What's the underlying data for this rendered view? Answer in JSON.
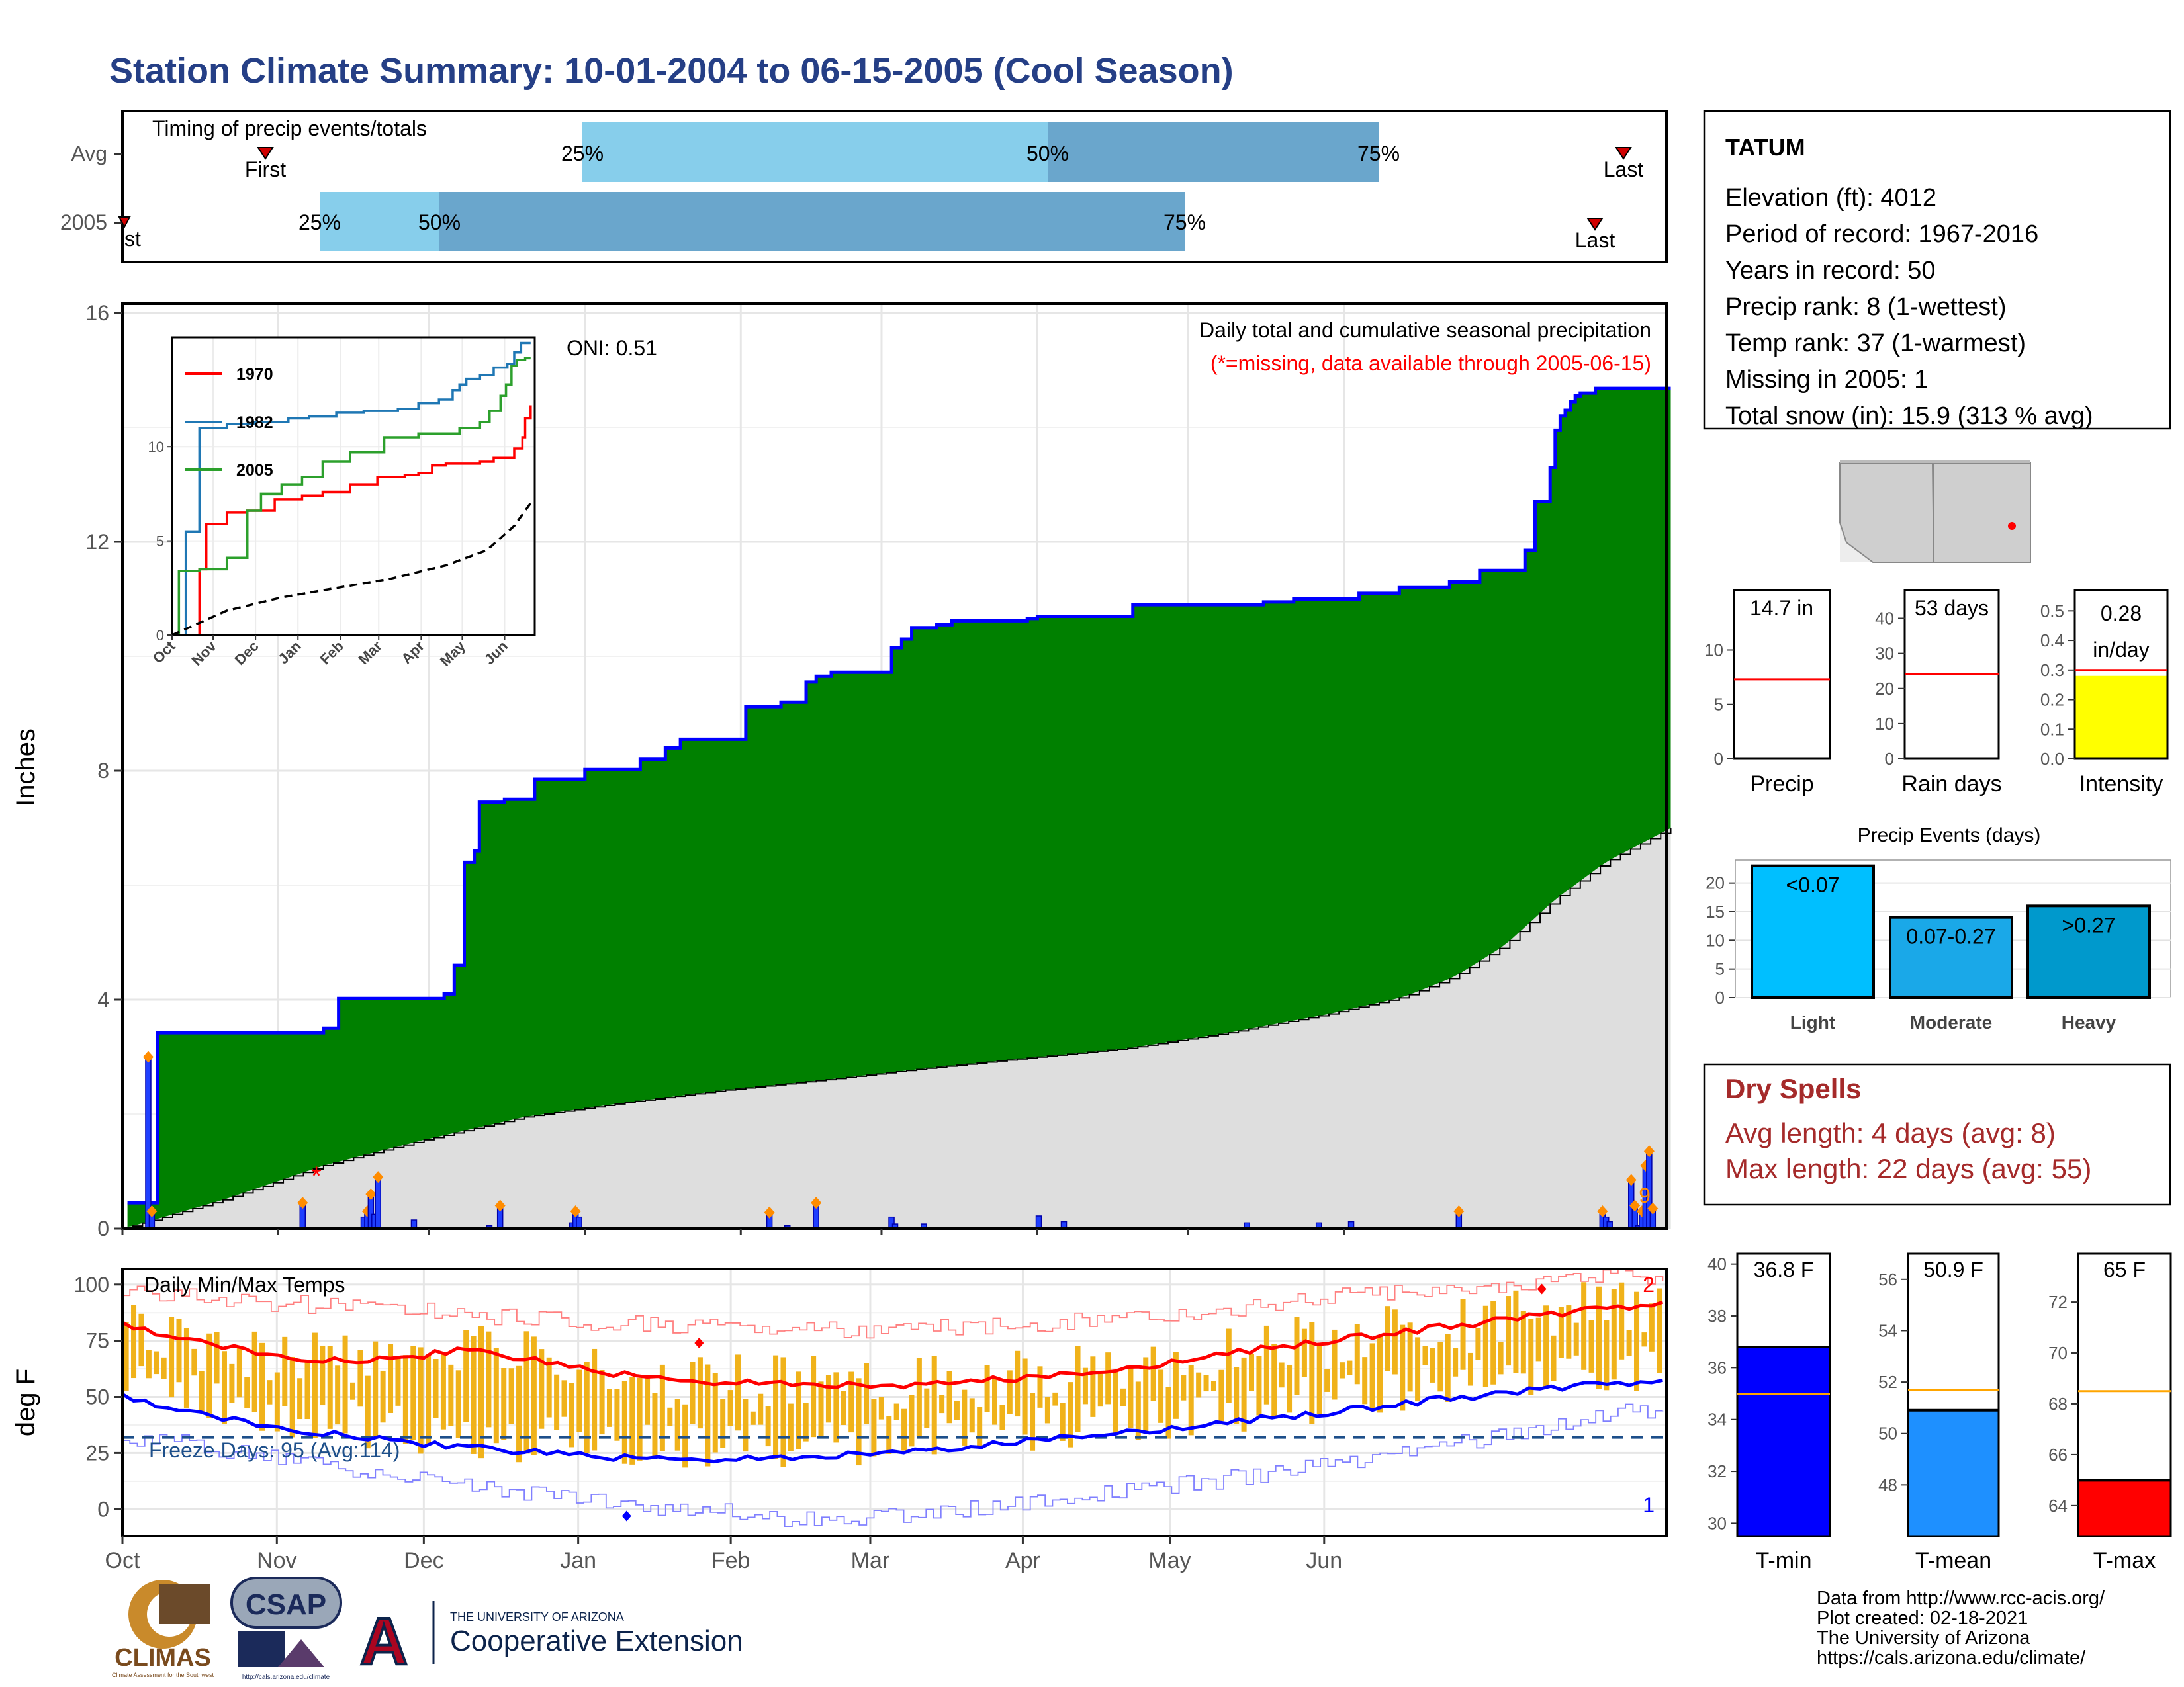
{
  "title": "Station Climate Summary: 10-01-2004 to 06-15-2005 (Cool Season)",
  "colors": {
    "title": "#253f86",
    "bar_light": "#87ceeb",
    "bar_dark": "#6aa6cc",
    "precip_fill": "#008000",
    "avg_fill": "#dedede",
    "precip_line": "#0000ff",
    "temp_bar": "#f0b21a",
    "tmax_line": "#ff0000",
    "tmin_line": "#0000ff",
    "freeze_line": "#1d4f8a",
    "dry_spells": "#a52a2a",
    "onset": "#ff8c00",
    "missing": "#ff0000",
    "intensity_fill": "#ffff00",
    "light_fill": "#00bfff",
    "moderate_fill": "#1aa8e8",
    "heavy_fill": "#0099cc",
    "tmin_fill": "#0000ff",
    "tmean_fill": "#1e90ff",
    "tmax_fill": "#ff0000",
    "avg_marker": "#ffa500"
  },
  "timing": {
    "label": "Timing of precip events/totals",
    "rows": [
      "Avg",
      "2005"
    ],
    "avg": {
      "first": "First",
      "last": "Last",
      "p25": "25%",
      "p50": "50%",
      "p75": "75%"
    },
    "y2005": {
      "first": "st",
      "last": "Last",
      "p25": "25%",
      "p50": "50%",
      "p75": "75%"
    }
  },
  "chart_data": [
    {
      "type": "area",
      "panel": "precipitation",
      "title": "Daily total and cumulative seasonal precipitation",
      "subtitle": "(*=missing, data available through 2005-06-15)",
      "ylabel": "Inches",
      "ylim": [
        0,
        16
      ],
      "yticks": [
        "0",
        "4",
        "8",
        "12",
        "16"
      ],
      "oni": "ONI: 0.51",
      "corner_count": "9",
      "series": [
        {
          "name": "cumulative 2005",
          "x": [
            1,
            6,
            7,
            40,
            43,
            64,
            66,
            68,
            70,
            71,
            76,
            82,
            92,
            103,
            108,
            111,
            124,
            131,
            136,
            138,
            141,
            153,
            155,
            157,
            162,
            165,
            180,
            182,
            201,
            227,
            233,
            246,
            254,
            264,
            270,
            279,
            281,
            284,
            285,
            286,
            287,
            288,
            289,
            290,
            293,
            308
          ],
          "values": [
            0.45,
            0.45,
            3.42,
            3.5,
            4.02,
            4.1,
            4.6,
            6.4,
            6.6,
            7.45,
            7.5,
            7.85,
            8.02,
            8.2,
            8.4,
            8.55,
            9.12,
            9.2,
            9.55,
            9.65,
            9.72,
            10.15,
            10.3,
            10.5,
            10.55,
            10.62,
            10.66,
            10.7,
            10.9,
            10.95,
            11.0,
            11.1,
            11.2,
            11.3,
            11.5,
            11.85,
            12.7,
            13.3,
            13.95,
            14.2,
            14.3,
            14.45,
            14.55,
            14.6,
            14.68,
            14.68
          ]
        },
        {
          "name": "cumulative average",
          "x": [
            1,
            20,
            40,
            60,
            80,
            100,
            120,
            140,
            160,
            180,
            200,
            220,
            240,
            255,
            265,
            275,
            285,
            295,
            308
          ],
          "values": [
            0.02,
            0.5,
            1.1,
            1.55,
            1.95,
            2.2,
            2.42,
            2.6,
            2.8,
            2.98,
            3.15,
            3.42,
            3.75,
            4.05,
            4.4,
            4.95,
            5.75,
            6.4,
            7.0
          ]
        },
        {
          "name": "daily precip",
          "x": [
            7,
            8,
            50,
            67,
            68,
            69,
            70,
            71,
            81,
            102,
            105,
            125,
            126,
            127,
            180,
            185,
            193,
            214,
            215,
            223,
            255,
            262,
            313,
            333,
            342,
            372,
            412,
            413,
            414,
            420,
            421,
            422,
            423,
            424,
            425,
            426
          ],
          "values": [
            3.0,
            0.3,
            0.45,
            0.2,
            0.3,
            0.6,
            0.25,
            0.9,
            0.15,
            0.05,
            0.4,
            0.1,
            0.3,
            0.2,
            0.28,
            0.05,
            0.45,
            0.2,
            0.08,
            0.08,
            0.22,
            0.12,
            0.1,
            0.1,
            0.12,
            0.3,
            0.3,
            0.2,
            0.12,
            0.85,
            0.4,
            0.05,
            0.3,
            1.1,
            1.35,
            0.35
          ]
        }
      ],
      "inset": {
        "type": "line",
        "xticks": [
          "Oct",
          "Nov",
          "Dec",
          "Jan",
          "Feb",
          "Mar",
          "Apr",
          "May",
          "Jun"
        ],
        "yticks": [
          "0",
          "5",
          "10"
        ],
        "ylim": [
          0,
          15.8
        ],
        "series": [
          {
            "name": "1970",
            "color": "#ff0000",
            "x": [
              0,
              12,
              20,
              25,
              40,
              55,
              75,
              95,
              110,
              130,
              150,
              170,
              180,
              190,
              200,
              225,
              235,
              250,
              256,
              258,
              262
            ],
            "values": [
              0.0,
              0.0,
              3.5,
              5.9,
              6.5,
              6.6,
              7.2,
              7.4,
              7.6,
              8.0,
              8.4,
              8.5,
              8.6,
              9.0,
              9.1,
              9.2,
              9.4,
              9.9,
              10.5,
              11.5,
              12.2
            ]
          },
          {
            "name": "1982",
            "color": "#1f77b4",
            "x": [
              0,
              10,
              20,
              40,
              60,
              85,
              100,
              120,
              140,
              165,
              180,
              195,
              205,
              210,
              215,
              225,
              235,
              245,
              250,
              255,
              262
            ],
            "values": [
              0.0,
              5.5,
              11.0,
              11.2,
              11.3,
              11.5,
              11.6,
              11.8,
              11.9,
              12.0,
              12.3,
              12.5,
              13.0,
              13.3,
              13.6,
              13.8,
              14.2,
              14.4,
              15.0,
              15.5,
              15.5
            ]
          },
          {
            "name": "2005",
            "color": "#2ca02c",
            "x": [
              0,
              5,
              20,
              40,
              55,
              65,
              80,
              95,
              110,
              130,
              155,
              180,
              210,
              225,
              232,
              240,
              244,
              248,
              252,
              258,
              262
            ],
            "values": [
              0.0,
              3.4,
              3.5,
              4.1,
              6.6,
              7.5,
              8.0,
              8.4,
              9.2,
              9.7,
              10.5,
              10.7,
              11.0,
              11.3,
              11.9,
              12.7,
              13.3,
              14.3,
              14.6,
              14.7,
              14.7
            ]
          },
          {
            "name": "average",
            "color": "#000000",
            "x": [
              0,
              40,
              80,
              120,
              160,
              200,
              230,
              250,
              262
            ],
            "values": [
              0.0,
              1.3,
              2.0,
              2.5,
              3.0,
              3.7,
              4.5,
              5.8,
              7.0
            ]
          }
        ]
      },
      "months": [
        "Oct",
        "Nov",
        "Dec",
        "Jan",
        "Feb",
        "Mar",
        "Apr",
        "May",
        "Jun"
      ]
    },
    {
      "type": "line",
      "panel": "temperature",
      "title": "Daily Min/Max Temps",
      "ylabel": "deg F",
      "ylim": [
        -12,
        107
      ],
      "yticks": [
        "0",
        "25",
        "50",
        "75",
        "100"
      ],
      "freeze_label": "Freeze Days: 95 (Avg:114)",
      "freeze_threshold": 32,
      "count_top": "2",
      "count_bottom": "1",
      "series": [
        {
          "name": "tmax avg",
          "x": [
            0,
            30,
            60,
            90,
            120,
            150,
            180,
            210,
            240,
            270,
            300,
            330,
            360,
            390,
            420,
            450,
            480,
            510,
            540,
            570,
            600,
            620,
            640,
            660,
            680,
            700,
            720,
            740,
            760,
            780,
            800,
            820,
            830
          ],
          "values": [
            82,
            76,
            72,
            68,
            66,
            67,
            71,
            68,
            63,
            60,
            57,
            56,
            56,
            55,
            54,
            57,
            58,
            60,
            62,
            66,
            70,
            72,
            74,
            76,
            78,
            80,
            82,
            84,
            86,
            88,
            90,
            91,
            92
          ]
        },
        {
          "name": "tmin avg",
          "x": [
            0,
            30,
            60,
            90,
            120,
            150,
            180,
            210,
            240,
            270,
            300,
            330,
            360,
            390,
            420,
            450,
            480,
            510,
            540,
            570,
            600,
            620,
            640,
            660,
            680,
            700,
            720,
            740,
            760,
            780,
            800,
            820,
            830
          ],
          "values": [
            50,
            44,
            40,
            36,
            33,
            30,
            28,
            26,
            24,
            23,
            22,
            22,
            23,
            24,
            25,
            27,
            30,
            32,
            34,
            36,
            39,
            41,
            42,
            44,
            46,
            48,
            50,
            51,
            53,
            55,
            56,
            57,
            57
          ]
        },
        {
          "name": "record high",
          "x": [
            0,
            60,
            120,
            180,
            240,
            300,
            360,
            420,
            480,
            540,
            600,
            660,
            700,
            740,
            780,
            830
          ],
          "values": [
            97,
            93,
            90,
            87,
            84,
            81,
            80,
            80,
            82,
            85,
            90,
            95,
            98,
            100,
            102,
            104
          ]
        },
        {
          "name": "record low",
          "x": [
            0,
            60,
            120,
            180,
            240,
            300,
            360,
            420,
            480,
            540,
            600,
            660,
            700,
            740,
            780,
            830
          ],
          "values": [
            33,
            26,
            18,
            10,
            5,
            0,
            -4,
            -3,
            2,
            8,
            14,
            22,
            27,
            33,
            40,
            45
          ]
        }
      ],
      "months": [
        "Oct",
        "Nov",
        "Dec",
        "Jan",
        "Feb",
        "Mar",
        "Apr",
        "May",
        "Jun"
      ]
    },
    {
      "type": "bar",
      "panel": "precip-summary",
      "categories": [
        "Precip",
        "Rain days",
        "Intensity"
      ],
      "values": [
        14.7,
        53,
        0.28
      ],
      "averages": [
        7.3,
        24,
        0.3
      ],
      "ylims": [
        [
          0,
          15.5
        ],
        [
          0,
          48
        ],
        [
          0,
          0.57
        ]
      ],
      "labels": [
        "14.7 in",
        "53 days",
        "0.28",
        "in/day"
      ],
      "yticks": [
        [
          "0",
          "5",
          "10"
        ],
        [
          "0",
          "10",
          "20",
          "30",
          "40"
        ],
        [
          "0.0",
          "0.1",
          "0.2",
          "0.3",
          "0.4",
          "0.5"
        ]
      ]
    },
    {
      "type": "bar",
      "panel": "precip-events",
      "title": "Precip Events (days)",
      "categories": [
        "Light",
        "Moderate",
        "Heavy"
      ],
      "values": [
        23,
        14,
        16
      ],
      "labels": [
        "<0.07",
        "0.07-0.27",
        ">0.27"
      ],
      "ylim": [
        0,
        24
      ],
      "yticks": [
        "0",
        "5",
        "10",
        "15",
        "20"
      ]
    },
    {
      "type": "bar",
      "panel": "temperature-summary",
      "categories": [
        "T-min",
        "T-mean",
        "T-max"
      ],
      "values": [
        36.8,
        50.9,
        65
      ],
      "averages": [
        35.0,
        51.7,
        68.5
      ],
      "ylims": [
        [
          29.5,
          40.4
        ],
        [
          46,
          57
        ],
        [
          62.8,
          73.9
        ]
      ],
      "labels": [
        "36.8 F",
        "50.9 F",
        "65 F"
      ],
      "yticks": [
        [
          "30",
          "32",
          "34",
          "36",
          "38",
          "40"
        ],
        [
          "48",
          "50",
          "52",
          "54",
          "56"
        ],
        [
          "64",
          "66",
          "68",
          "70",
          "72"
        ]
      ]
    }
  ],
  "station": {
    "name": "TATUM",
    "lines": [
      "Elevation (ft): 4012",
      "Period of record: 1967-2016",
      "Years in record: 50",
      "Precip rank: 8 (1-wettest)",
      "Temp rank: 37 (1-warmest)",
      "Missing in 2005: 1",
      "Total snow (in): 15.9 (313 % avg)"
    ]
  },
  "dry_spells": {
    "title": "Dry Spells",
    "avg": "Avg length: 4 days (avg: 8)",
    "max": "Max length: 22 days (avg: 55)"
  },
  "footer": {
    "lines": [
      "Data from http://www.rcc-acis.org/",
      "Plot created: 02-18-2021",
      "The University of Arizona",
      "https://cals.arizona.edu/climate/"
    ],
    "logos": {
      "climas": "CLIMAS",
      "climas_sub": "Climate Assessment for the Southwest",
      "csap": "CSAP",
      "csap_sub": "http://cals.arizona.edu/climate",
      "ua": "A",
      "ua_small": "THE UNIVERSITY OF ARIZONA",
      "ua_big": "Cooperative Extension"
    }
  }
}
